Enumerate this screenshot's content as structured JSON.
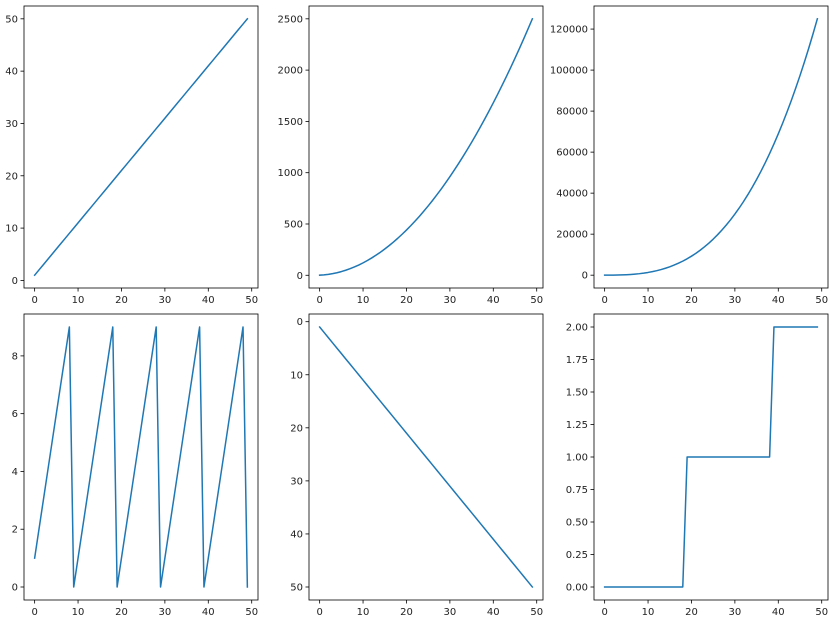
{
  "colors": {
    "line": "#1f77b4",
    "axes": "#000000",
    "text": "#222222",
    "background": "#ffffff"
  },
  "chart_data": [
    {
      "type": "line",
      "title": "",
      "xlabel": "",
      "ylabel": "",
      "grid": false,
      "legend": "none",
      "x_formula": "i for i in 0..49",
      "y_formula": "i + 1",
      "xlim": [
        -2.45,
        51.45
      ],
      "ylim": [
        -1.45,
        52.45
      ],
      "xticks": [
        0,
        10,
        20,
        30,
        40,
        50
      ],
      "yticks": [
        0,
        10,
        20,
        30,
        40,
        50
      ],
      "ytick_labels": [
        "0",
        "10",
        "20",
        "30",
        "40",
        "50"
      ],
      "y_inverted": false
    },
    {
      "type": "line",
      "title": "",
      "xlabel": "",
      "ylabel": "",
      "grid": false,
      "legend": "none",
      "x_formula": "i for i in 0..49",
      "y_formula": "(i + 1)^2",
      "xlim": [
        -2.45,
        51.45
      ],
      "ylim": [
        -124,
        2625
      ],
      "xticks": [
        0,
        10,
        20,
        30,
        40,
        50
      ],
      "yticks": [
        0,
        500,
        1000,
        1500,
        2000,
        2500
      ],
      "ytick_labels": [
        "0",
        "500",
        "1000",
        "1500",
        "2000",
        "2500"
      ],
      "y_inverted": false
    },
    {
      "type": "line",
      "title": "",
      "xlabel": "",
      "ylabel": "",
      "grid": false,
      "legend": "none",
      "x_formula": "i for i in 0..49",
      "y_formula": "(i + 1)^3",
      "xlim": [
        -2.45,
        51.45
      ],
      "ylim": [
        -6249,
        131251
      ],
      "xticks": [
        0,
        10,
        20,
        30,
        40,
        50
      ],
      "yticks": [
        0,
        20000,
        40000,
        60000,
        80000,
        100000,
        120000
      ],
      "ytick_labels": [
        "0",
        "20000",
        "40000",
        "60000",
        "80000",
        "100000",
        "120000"
      ],
      "y_inverted": false
    },
    {
      "type": "line",
      "title": "",
      "xlabel": "",
      "ylabel": "",
      "grid": false,
      "legend": "none",
      "x_formula": "i for i in 0..49",
      "y_formula": "(i + 1) mod 10",
      "xlim": [
        -2.45,
        51.45
      ],
      "ylim": [
        -0.45,
        9.45
      ],
      "xticks": [
        0,
        10,
        20,
        30,
        40,
        50
      ],
      "yticks": [
        0,
        2,
        4,
        6,
        8
      ],
      "ytick_labels": [
        "0",
        "2",
        "4",
        "6",
        "8"
      ],
      "y_inverted": false
    },
    {
      "type": "line",
      "title": "",
      "xlabel": "",
      "ylabel": "",
      "grid": false,
      "legend": "none",
      "x_formula": "i for i in 0..49",
      "y_formula": "i + 1",
      "xlim": [
        -2.45,
        51.45
      ],
      "ylim": [
        52.45,
        -1.45
      ],
      "xticks": [
        0,
        10,
        20,
        30,
        40,
        50
      ],
      "yticks": [
        0,
        10,
        20,
        30,
        40,
        50
      ],
      "ytick_labels": [
        "0",
        "10",
        "20",
        "30",
        "40",
        "50"
      ],
      "y_inverted": true
    },
    {
      "type": "line",
      "title": "",
      "xlabel": "",
      "ylabel": "",
      "grid": false,
      "legend": "none",
      "x_formula": "i for i in 0..49",
      "y_formula": "floor((i + 1) / 20)",
      "xlim": [
        -2.45,
        51.45
      ],
      "ylim": [
        -0.1,
        2.1
      ],
      "xticks": [
        0,
        10,
        20,
        30,
        40,
        50
      ],
      "yticks": [
        0,
        0.25,
        0.5,
        0.75,
        1.0,
        1.25,
        1.5,
        1.75,
        2.0
      ],
      "ytick_labels": [
        "0.00",
        "0.25",
        "0.50",
        "0.75",
        "1.00",
        "1.25",
        "1.50",
        "1.75",
        "2.00"
      ],
      "y_inverted": false
    }
  ]
}
